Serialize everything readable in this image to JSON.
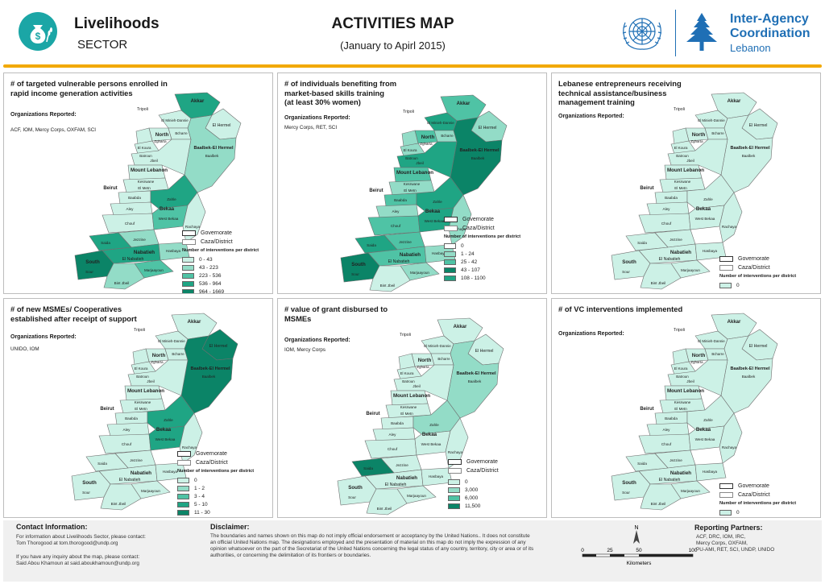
{
  "header": {
    "sector_title": "Livelihoods",
    "sector_subtitle": "SECTOR",
    "map_title": "ACTIVITIES MAP",
    "period": "(January to Apirl 2015)",
    "partner_line1": "Inter-Agency",
    "partner_line2": "Coordination",
    "partner_line3": "Lebanon",
    "brand_color": "#1f6fb5",
    "accent_color": "#f2a900",
    "sector_icon": "money-bag-wheat-icon",
    "un_logo": "un-emblem-logo",
    "cedar_logo": "cedar-tree-logo"
  },
  "map_labels": {
    "akkar": "Akkar",
    "north": "North",
    "tripoli": "Tripoli",
    "el_hermel": "El Hermel",
    "baalbek_el_hermel": "Baalbek-El Hermel",
    "baalbek": "Baalbek",
    "mount_lebanon": "Mount Lebanon",
    "beirut": "Beirut",
    "bekaa": "Bekaa",
    "zahle": "Zahle",
    "west_bekaa": "West Bekaa",
    "rachaya": "Rachaya",
    "chouf": "Chouf",
    "aley": "Aley",
    "baabda": "Baabda",
    "el_metn": "El Metn",
    "kesrwane": "Kesrwane",
    "jbeil": "Jbeil",
    "batroun": "Batroun",
    "bcharre": "Bcharre",
    "zgharta": "Zgharta",
    "el_koura": "El Koura",
    "minieh_dannie": "El Minieh-Dannie",
    "saida": "Saida",
    "jezzine": "Jezzine",
    "south": "South",
    "sour": "Sour",
    "nabatieh": "El Nabatieh",
    "nabatieh_gov": "Nabatieh",
    "hasbaya": "Hasbaya",
    "marjaayoun": "Marjaayoun",
    "bint_jbeil": "Bint Jbeil"
  },
  "common_legend": {
    "governorate": "Governorate",
    "caza": "Caza/District"
  },
  "panels": [
    {
      "title_line1": "# of targeted vulnerable persons enrolled in",
      "title_line2": "rapid income generation activities",
      "title_line3": "",
      "orgs_label": "Organizations Reported:",
      "orgs": "ACF, IOM, Mercy Corps, OXFAM, SCI",
      "legend_title": "Number of interventions per district",
      "legend": [
        {
          "label": "0 - 43",
          "color": "#ccf1e6"
        },
        {
          "label": "43 - 223",
          "color": "#93dcc7"
        },
        {
          "label": "223 - 536",
          "color": "#4fc3a5"
        },
        {
          "label": "536 - 964",
          "color": "#1fa584"
        },
        {
          "label": "964 - 1669",
          "color": "#0b8467"
        }
      ]
    },
    {
      "title_line1": "# of individuals benefiting from",
      "title_line2": "market-based skills training",
      "title_line3": "(at least 30% women)",
      "orgs_label": "Organizations Reported:",
      "orgs": "Mercy Corps, RET, SCI",
      "legend_title": "Number of interventions per district",
      "legend": [
        {
          "label": "0",
          "color": "#ffffff"
        },
        {
          "label": "1 - 24",
          "color": "#93dcc7"
        },
        {
          "label": "25 - 42",
          "color": "#4fc3a5"
        },
        {
          "label": "43 - 107",
          "color": "#0b8467"
        },
        {
          "label": "108 - 1100",
          "color": "#1fa584"
        }
      ]
    },
    {
      "title_line1": "Lebanese entrepreneurs receiving",
      "title_line2": "technical assistance/business",
      "title_line3": " management training",
      "orgs_label": "Organizations Reported:",
      "orgs": "",
      "legend_title": "Number of interventions per district",
      "legend": [
        {
          "label": "0",
          "color": "#ccf1e6"
        }
      ]
    },
    {
      "title_line1": "# of new MSMEs/ Cooperatives",
      "title_line2": "established after receipt of support",
      "title_line3": "",
      "orgs_label": "Organizations Reported:",
      "orgs": "UNIDO, IOM",
      "legend_title": "Number of interventions per district",
      "legend": [
        {
          "label": "0",
          "color": "#ccf1e6"
        },
        {
          "label": "1 - 2",
          "color": "#93dcc7"
        },
        {
          "label": "3 - 4",
          "color": "#4fc3a5"
        },
        {
          "label": "5 - 10",
          "color": "#1fa584"
        },
        {
          "label": "11 - 30",
          "color": "#0b8467"
        }
      ]
    },
    {
      "title_line1": "# value of grant disbursed to",
      "title_line2": "MSMEs",
      "title_line3": "",
      "orgs_label": "Organizations Reported:",
      "orgs": "IOM, Mercy Corps",
      "legend_title": "",
      "legend": [
        {
          "label": "0",
          "color": "#ccf1e6"
        },
        {
          "label": "3,000",
          "color": "#93dcc7"
        },
        {
          "label": "6,000",
          "color": "#4fc3a5"
        },
        {
          "label": "11,500",
          "color": "#0b8467"
        }
      ]
    },
    {
      "title_line1": "# of VC interventions implemented",
      "title_line2": "",
      "title_line3": "",
      "orgs_label": "Organizations Reported:",
      "orgs": "",
      "legend_title": "Number of interventions per district",
      "legend": [
        {
          "label": "0",
          "color": "#ccf1e6"
        }
      ]
    }
  ],
  "footer": {
    "contact_head": "Contact Information:",
    "contact_line1": "For information about Livelihoods Sector, please contact:",
    "contact_line2": "Tom Thorogood at tom.thorogood@undp.org",
    "contact_line3": "If you have any inquiry about the map, please contact:",
    "contact_line4": "Said Abou Khamoun at said.aboukhamoun@undp.org",
    "disclaimer_head": "Disclaimer:",
    "disclaimer_line1": "The boundaries and names shown on this map do not imply official endorsement or acceptancy by the United Nations.. It does not constitute",
    "disclaimer_line2": "an official United Nations map. The designations employed and the presentation of material on this map do not imply the expression of any",
    "disclaimer_line3": "opinion whatsoever on the part of the Secretariat of the United Nations concerning the legal status of any country, territory, city or area or of its",
    "disclaimer_line4": "authorities, or concerning the delimitation of its frontiers or boundaries.",
    "north": "N",
    "scale_0": "0",
    "scale_25": "25",
    "scale_50": "50",
    "scale_100": "100",
    "scale_unit": "Kilometers",
    "partners_head": "Reporting Partners:",
    "partners_line1": "ACF, DRC, IOM, IRC,",
    "partners_line2": "Mercy Corps, OXFAM,",
    "partners_line3": "PU-AMI, RET, SCI, UNDP, UNIDO"
  }
}
